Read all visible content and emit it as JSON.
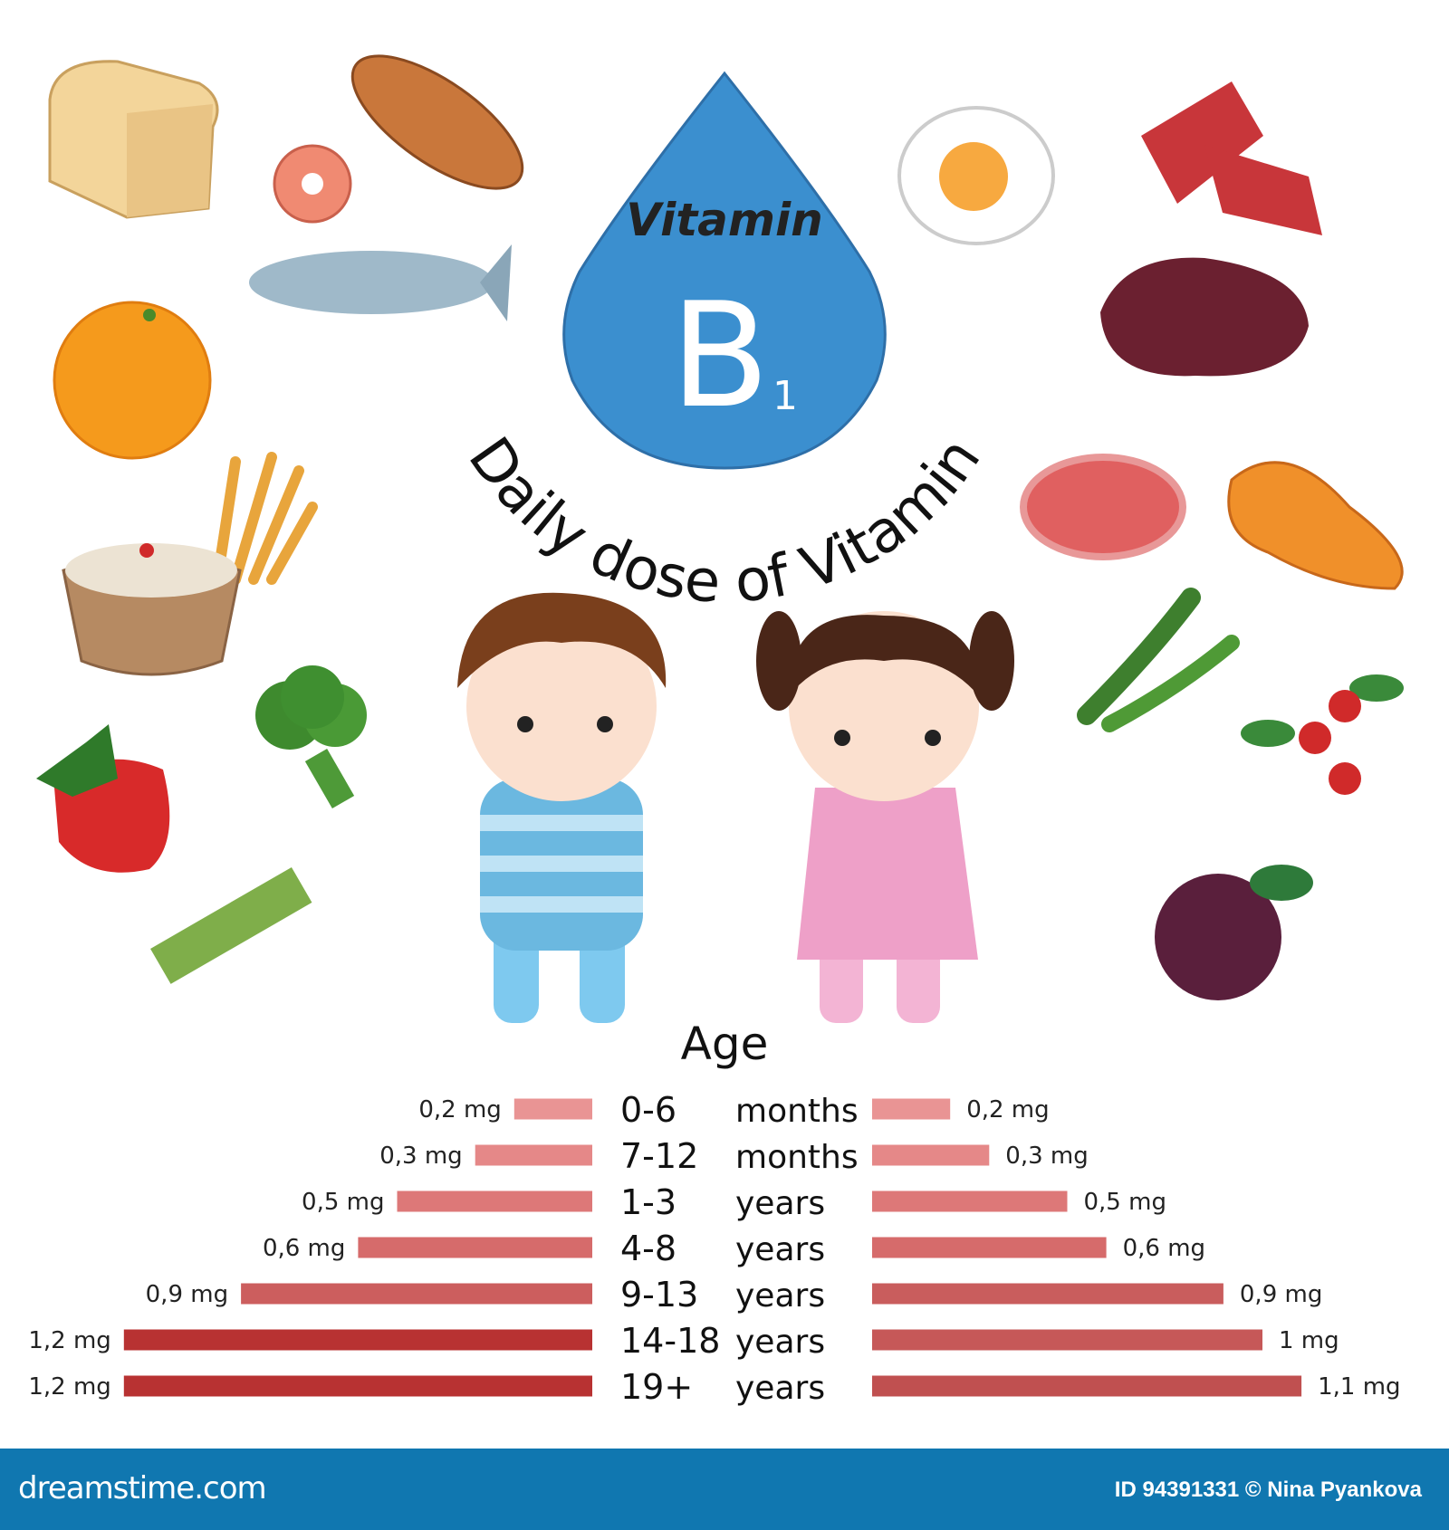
{
  "header": {
    "drop_word": "Vitamin",
    "drop_letter": "B",
    "drop_subscript": "1",
    "arc_title": "Daily dose of Vitamin"
  },
  "colors": {
    "drop": "#3b8fcf",
    "footer": "#1077b0",
    "bar_light": "#e99494",
    "bar_dark": "#b83232"
  },
  "foods_left": [
    "bread-loaf",
    "baguette",
    "salmon-steak",
    "fish",
    "orange",
    "porridge-bowl",
    "wheat",
    "broccoli",
    "strawberry",
    "asparagus"
  ],
  "foods_right": [
    "fried-egg",
    "raw-ribs",
    "liver",
    "steak",
    "roast-chicken",
    "green-peas",
    "rosehip",
    "plum"
  ],
  "chart_data": {
    "type": "bar",
    "orientation": "horizontal-butterfly",
    "title": "Age",
    "unit": "mg",
    "categories": [
      {
        "age": "0-6",
        "unit": "months"
      },
      {
        "age": "7-12",
        "unit": "months"
      },
      {
        "age": "1-3",
        "unit": "years"
      },
      {
        "age": "4-8",
        "unit": "years"
      },
      {
        "age": "9-13",
        "unit": "years"
      },
      {
        "age": "14-18",
        "unit": "years"
      },
      {
        "age": "19+",
        "unit": "years"
      }
    ],
    "series": [
      {
        "side": "left",
        "figure": "boy",
        "values": [
          0.2,
          0.3,
          0.5,
          0.6,
          0.9,
          1.2,
          1.2
        ],
        "labels": [
          "0,2 mg",
          "0,3 mg",
          "0,5 mg",
          "0,6 mg",
          "0,9 mg",
          "1,2 mg",
          "1,2 mg"
        ],
        "colors": [
          "#e99494",
          "#e58888",
          "#dd7878",
          "#d66b6b",
          "#cc5e5e",
          "#b83232",
          "#b83232"
        ]
      },
      {
        "side": "right",
        "figure": "girl",
        "values": [
          0.2,
          0.3,
          0.5,
          0.6,
          0.9,
          1.0,
          1.1
        ],
        "labels": [
          "0,2 mg",
          "0,3 mg",
          "0,5 mg",
          "0,6 mg",
          "0,9 mg",
          "1 mg",
          "1,1 mg"
        ],
        "colors": [
          "#e99494",
          "#e58888",
          "#dd7878",
          "#d66b6b",
          "#c95d5d",
          "#c65858",
          "#c05050"
        ]
      }
    ]
  },
  "footer": {
    "brand": "dreamstime.com",
    "credit": "ID 94391331 © Nina  Pyankova"
  }
}
